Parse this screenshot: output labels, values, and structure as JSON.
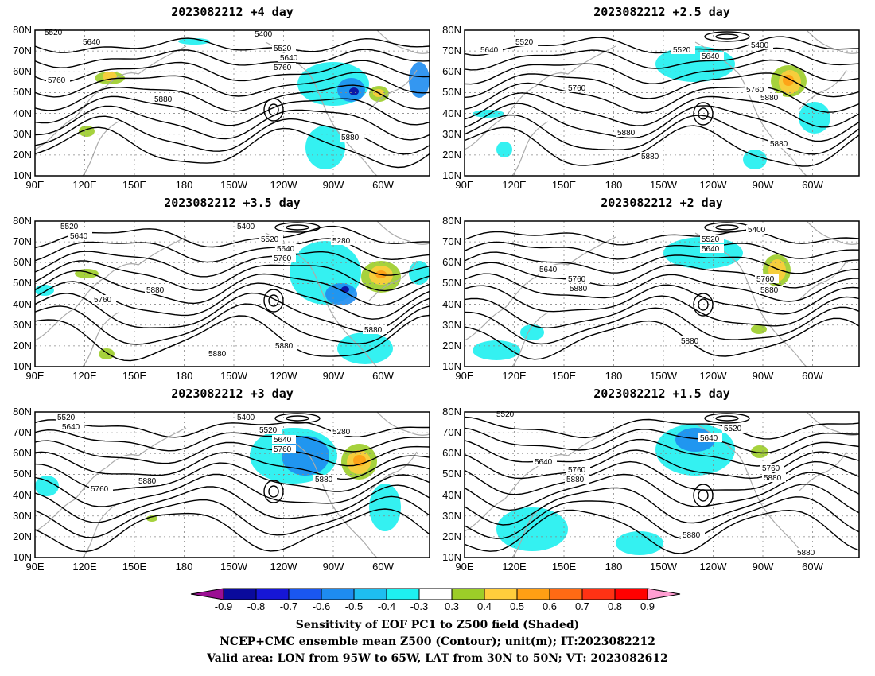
{
  "panels": [
    {
      "title": "2023082212 +4 day",
      "labels": [
        "5520",
        "5640",
        "5760",
        "5400",
        "5520",
        "5640",
        "5760",
        "5880",
        "5880"
      ]
    },
    {
      "title": "2023082212 +2.5 day",
      "labels": [
        "5520",
        "5640",
        "5400",
        "5520",
        "5640",
        "5760",
        "5760",
        "5880",
        "5880",
        "5880",
        "5880"
      ]
    },
    {
      "title": "2023082212 +3.5 day",
      "labels": [
        "5520",
        "5640",
        "5400",
        "5520",
        "5640",
        "5760",
        "5280",
        "5760",
        "5880",
        "5880",
        "5880",
        "5880"
      ]
    },
    {
      "title": "2023082212 +2 day",
      "labels": [
        "5400",
        "5520",
        "5640",
        "5640",
        "5760",
        "5880",
        "5760",
        "5880",
        "5880"
      ]
    },
    {
      "title": "2023082212 +3 day",
      "labels": [
        "5520",
        "5640",
        "5400",
        "5520",
        "5640",
        "5760",
        "5280",
        "5880",
        "5760",
        "5880"
      ]
    },
    {
      "title": "2023082212 +1.5 day",
      "labels": [
        "5520",
        "5520",
        "5640",
        "5640",
        "5760",
        "5880",
        "5760",
        "5880",
        "5880",
        "5880"
      ]
    }
  ],
  "lat_ticks": [
    "80N",
    "70N",
    "60N",
    "50N",
    "40N",
    "30N",
    "20N",
    "10N"
  ],
  "lon_ticks": [
    "90E",
    "120E",
    "150E",
    "180",
    "150W",
    "120W",
    "90W",
    "60W"
  ],
  "colorbar": {
    "labels": [
      "-0.9",
      "-0.8",
      "-0.7",
      "-0.6",
      "-0.5",
      "-0.4",
      "-0.3",
      "0.3",
      "0.4",
      "0.5",
      "0.6",
      "0.7",
      "0.8",
      "0.9"
    ],
    "colors": [
      "#9b0f93",
      "#0a0a9c",
      "#1616d6",
      "#1a57f0",
      "#1e8cf0",
      "#1ebef0",
      "#1ef0f0",
      "#ffffff",
      "#9ccd28",
      "#ffcd3c",
      "#ff9f14",
      "#ff6a14",
      "#ff3214",
      "#ff0000",
      "#ff9ed2"
    ]
  },
  "footer": {
    "line1": "Sensitivity of EOF PC1 to Z500 field (Shaded)",
    "line2": "NCEP+CMC ensemble mean Z500 (Contour); unit(m); IT:2023082212",
    "line3": "Valid area: LON from 95W to 65W, LAT from 30N to 50N; VT: 2023082612"
  }
}
